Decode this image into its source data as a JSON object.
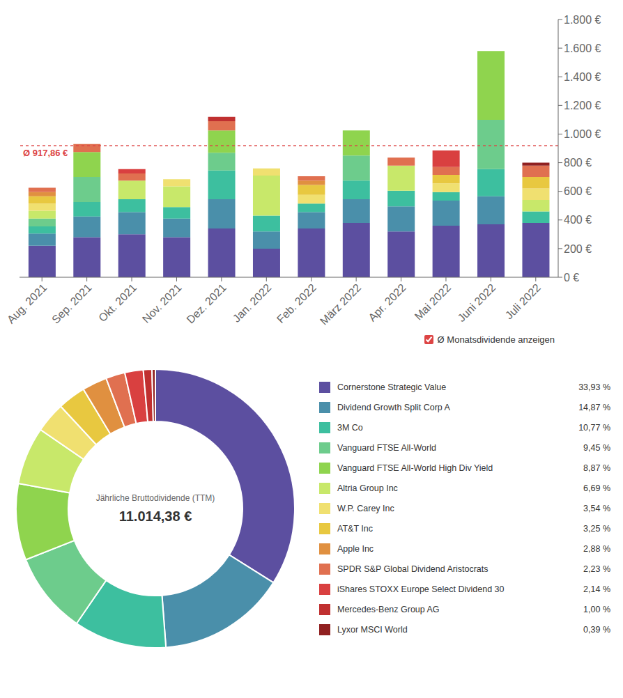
{
  "chart_data": [
    {
      "type": "bar",
      "stacked": true,
      "grid": false,
      "categories": [
        "Aug. 2021",
        "Sep. 2021",
        "Okt. 2021",
        "Nov. 2021",
        "Dez. 2021",
        "Jan. 2022",
        "Feb. 2022",
        "März 2022",
        "Apr. 2022",
        "Mai 2022",
        "Juni 2022",
        "Juli 2022"
      ],
      "series": [
        {
          "color": "#5c4fa0",
          "values": [
            220,
            280,
            300,
            280,
            340,
            200,
            340,
            380,
            320,
            360,
            370,
            380
          ]
        },
        {
          "color": "#4a8faa",
          "values": [
            85,
            145,
            155,
            130,
            205,
            120,
            115,
            165,
            175,
            175,
            195,
            0
          ]
        },
        {
          "color": "#3dbf9f",
          "values": [
            50,
            100,
            90,
            80,
            200,
            110,
            60,
            130,
            110,
            60,
            190,
            80
          ]
        },
        {
          "color": "#6dcc8c",
          "values": [
            55,
            175,
            0,
            0,
            125,
            0,
            0,
            175,
            0,
            0,
            345,
            0
          ]
        },
        {
          "color": "#8fd44e",
          "values": [
            0,
            175,
            0,
            0,
            155,
            0,
            0,
            175,
            0,
            0,
            480,
            0
          ]
        },
        {
          "color": "#c8e86a",
          "values": [
            55,
            0,
            130,
            145,
            0,
            280,
            0,
            0,
            175,
            0,
            0,
            80
          ]
        },
        {
          "color": "#f0e070",
          "values": [
            50,
            0,
            0,
            50,
            0,
            50,
            60,
            0,
            0,
            60,
            0,
            80
          ]
        },
        {
          "color": "#e8c840",
          "values": [
            50,
            0,
            0,
            0,
            0,
            0,
            70,
            0,
            0,
            60,
            0,
            80
          ]
        },
        {
          "color": "#e09040",
          "values": [
            30,
            0,
            0,
            0,
            0,
            0,
            30,
            0,
            0,
            0,
            0,
            0
          ]
        },
        {
          "color": "#e07050",
          "values": [
            30,
            55,
            50,
            0,
            65,
            0,
            30,
            0,
            55,
            55,
            0,
            80
          ]
        },
        {
          "color": "#d94040",
          "values": [
            0,
            0,
            30,
            0,
            0,
            0,
            0,
            0,
            0,
            115,
            0,
            0
          ]
        },
        {
          "color": "#c03030",
          "values": [
            0,
            0,
            0,
            0,
            30,
            0,
            0,
            0,
            0,
            0,
            0,
            0
          ]
        },
        {
          "color": "#902020",
          "values": [
            0,
            0,
            0,
            0,
            0,
            0,
            0,
            0,
            0,
            0,
            0,
            20
          ]
        }
      ],
      "ylim": [
        0,
        1800
      ],
      "yticks": [
        {
          "value": 0,
          "label": "0 €"
        },
        {
          "value": 200,
          "label": "200 €"
        },
        {
          "value": 400,
          "label": "400 €"
        },
        {
          "value": 600,
          "label": "600 €"
        },
        {
          "value": 800,
          "label": "800 €"
        },
        {
          "value": 1000,
          "label": "1.000 €"
        },
        {
          "value": 1200,
          "label": "1.200 €"
        },
        {
          "value": 1400,
          "label": "1.400 €"
        },
        {
          "value": 1600,
          "label": "1.600 €"
        },
        {
          "value": 1800,
          "label": "1.800 €"
        }
      ],
      "reference_lines": [
        {
          "value": 917.86,
          "label": "Ø 917,86 €",
          "color": "#dd4444"
        }
      ],
      "annotations": [
        "Ø Monatsdividende anzeigen"
      ]
    },
    {
      "type": "donut",
      "legend": "right",
      "categories": [
        "Cornerstone Strategic Value",
        "Dividend Growth Split Corp A",
        "3M Co",
        "Vanguard FTSE All-World",
        "Vanguard FTSE All-World High Div Yield",
        "Altria Group Inc",
        "W.P. Carey Inc",
        "AT&T Inc",
        "Apple Inc",
        "SPDR S&P Global Dividend Aristocrats",
        "iShares STOXX Europe Select Dividend 30",
        "Mercedes-Benz Group AG",
        "Lyxor MSCI World"
      ],
      "values": [
        33.93,
        14.87,
        10.77,
        9.45,
        8.87,
        6.69,
        3.54,
        3.25,
        2.88,
        2.23,
        2.14,
        1.0,
        0.39
      ],
      "value_labels": [
        "33,93 %",
        "14,87 %",
        "10,77 %",
        "9,45 %",
        "8,87 %",
        "6,69 %",
        "3,54 %",
        "3,25 %",
        "2,88 %",
        "2,23 %",
        "2,14 %",
        "1,00 %",
        "0,39 %"
      ],
      "colors": [
        "#5c4fa0",
        "#4a8faa",
        "#3dbf9f",
        "#6dcc8c",
        "#8fd44e",
        "#c8e86a",
        "#f0e070",
        "#e8c840",
        "#e09040",
        "#e07050",
        "#d94040",
        "#c03030",
        "#902020"
      ],
      "annotations": [
        "Jährliche Bruttodividende (TTM)",
        "11.014,38 €"
      ]
    }
  ]
}
